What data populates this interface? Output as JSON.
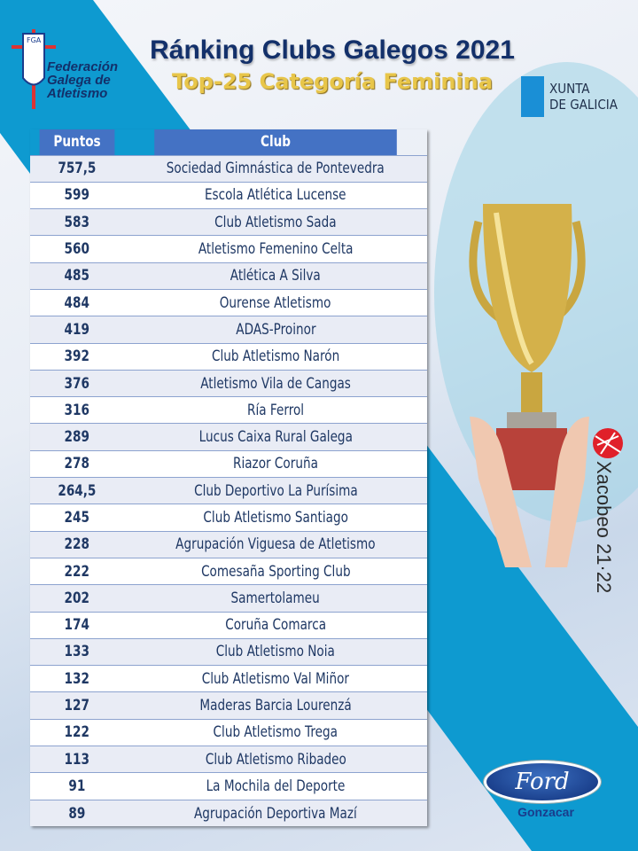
{
  "header": {
    "title": "Ránking Clubs Galegos 2021",
    "subtitle": "Top-25 Categoría Feminina"
  },
  "logos": {
    "fga": {
      "badge": "FGA",
      "lines": [
        "Federación",
        "Galega de",
        "Atletismo"
      ]
    },
    "xunta": [
      "XUNTA",
      "DE GALICIA"
    ],
    "xacobeo": "Xacobeo 21·22",
    "ford": "Ford",
    "dealer": "Gonzacar"
  },
  "colors": {
    "header_bg": "#4472c4",
    "band": "#0e9ad0",
    "title": "#13306a",
    "subtitle": "#e8c64a"
  },
  "table": {
    "columns": [
      "Puntos",
      "Club"
    ],
    "rows": [
      [
        "757,5",
        "Sociedad Gimnástica de Pontevedra"
      ],
      [
        "599",
        "Escola Atlética Lucense"
      ],
      [
        "583",
        "Club Atletismo Sada"
      ],
      [
        "560",
        "Atletismo Femenino Celta"
      ],
      [
        "485",
        "Atlética A Silva"
      ],
      [
        "484",
        "Ourense Atletismo"
      ],
      [
        "419",
        "ADAS-Proinor"
      ],
      [
        "392",
        "Club Atletismo Narón"
      ],
      [
        "376",
        "Atletismo Vila de Cangas"
      ],
      [
        "316",
        "Ría Ferrol"
      ],
      [
        "289",
        "Lucus Caixa Rural Galega"
      ],
      [
        "278",
        "Riazor Coruña"
      ],
      [
        "264,5",
        "Club Deportivo La Purísima"
      ],
      [
        "245",
        "Club Atletismo Santiago"
      ],
      [
        "228",
        "Agrupación Viguesa de Atletismo"
      ],
      [
        "222",
        "Comesaña Sporting Club"
      ],
      [
        "202",
        "Samertolameu"
      ],
      [
        "174",
        "Coruña Comarca"
      ],
      [
        "133",
        "Club Atletismo Noia"
      ],
      [
        "132",
        "Club Atletismo Val Miñor"
      ],
      [
        "127",
        "Maderas Barcia Lourenzá"
      ],
      [
        "122",
        "Club Atletismo Trega"
      ],
      [
        "113",
        "Club Atletismo Ribadeo"
      ],
      [
        "91",
        "La Mochila del Deporte"
      ],
      [
        "89",
        "Agrupación Deportiva Mazí"
      ]
    ]
  }
}
